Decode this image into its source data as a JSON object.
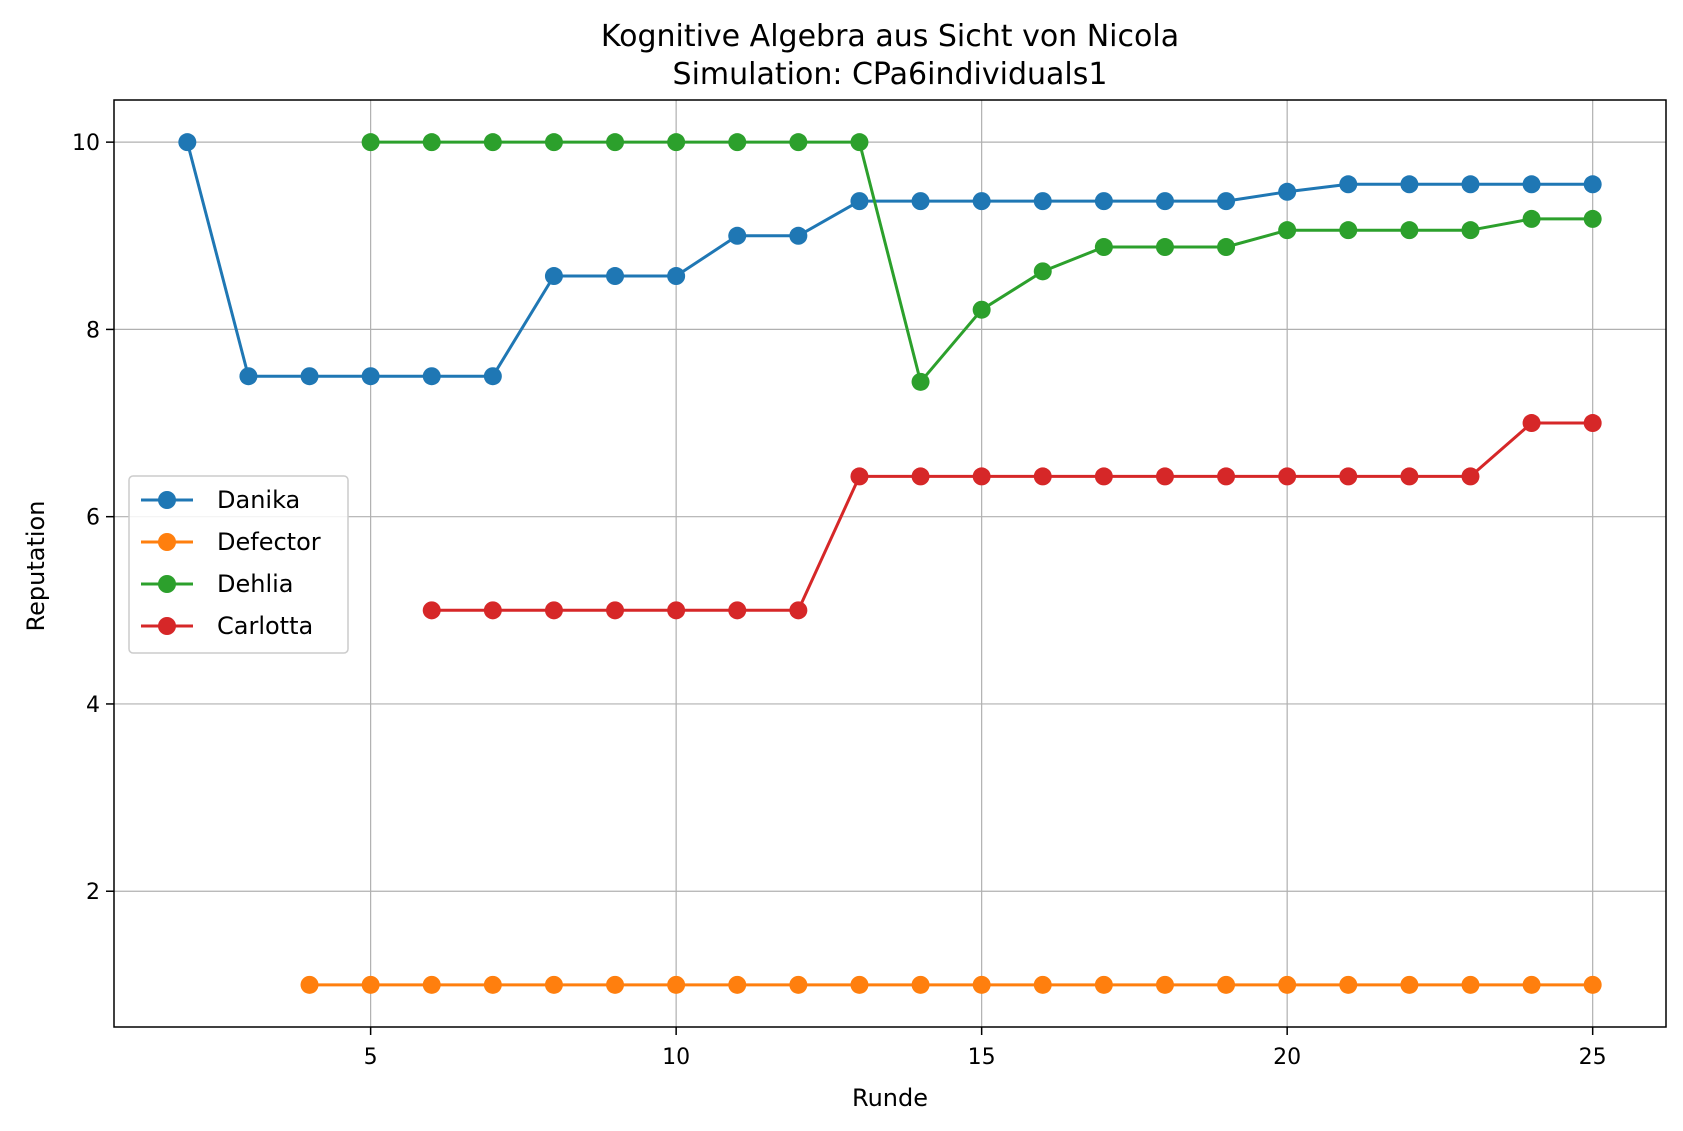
{
  "chart_data": {
    "type": "line",
    "title": "Kognitive Algebra aus Sicht von Nicola",
    "subtitle": "Simulation: CPa6individuals1",
    "xlabel": "Runde",
    "ylabel": "Reputation",
    "xlim": [
      0.8,
      26.2
    ],
    "ylim": [
      0.55,
      10.45
    ],
    "xticks": [
      5,
      10,
      15,
      20,
      25
    ],
    "yticks": [
      2,
      4,
      6,
      8,
      10
    ],
    "grid": true,
    "legend_position": "center-left",
    "series": [
      {
        "name": "Danika",
        "color": "#1f77b4",
        "x": [
          2,
          3,
          4,
          5,
          6,
          7,
          8,
          9,
          10,
          11,
          12,
          13,
          14,
          15,
          16,
          17,
          18,
          19,
          20,
          21,
          22,
          23,
          24,
          25
        ],
        "y": [
          10,
          7.5,
          7.5,
          7.5,
          7.5,
          7.5,
          8.57,
          8.57,
          8.57,
          9.0,
          9.0,
          9.37,
          9.37,
          9.37,
          9.37,
          9.37,
          9.37,
          9.37,
          9.47,
          9.55,
          9.55,
          9.55,
          9.55,
          9.55
        ]
      },
      {
        "name": "Defector",
        "color": "#ff7f0e",
        "x": [
          4,
          5,
          6,
          7,
          8,
          9,
          10,
          11,
          12,
          13,
          14,
          15,
          16,
          17,
          18,
          19,
          20,
          21,
          22,
          23,
          24,
          25
        ],
        "y": [
          1,
          1,
          1,
          1,
          1,
          1,
          1,
          1,
          1,
          1,
          1,
          1,
          1,
          1,
          1,
          1,
          1,
          1,
          1,
          1,
          1,
          1
        ]
      },
      {
        "name": "Dehlia",
        "color": "#2ca02c",
        "x": [
          5,
          6,
          7,
          8,
          9,
          10,
          11,
          12,
          13,
          14,
          15,
          16,
          17,
          18,
          19,
          20,
          21,
          22,
          23,
          24,
          25
        ],
        "y": [
          10,
          10,
          10,
          10,
          10,
          10,
          10,
          10,
          10,
          7.44,
          8.21,
          8.62,
          8.88,
          8.88,
          8.88,
          9.06,
          9.06,
          9.06,
          9.06,
          9.18,
          9.18
        ]
      },
      {
        "name": "Carlotta",
        "color": "#d62728",
        "x": [
          6,
          7,
          8,
          9,
          10,
          11,
          12,
          13,
          14,
          15,
          16,
          17,
          18,
          19,
          20,
          21,
          22,
          23,
          24,
          25
        ],
        "y": [
          5,
          5,
          5,
          5,
          5,
          5,
          5,
          6.43,
          6.43,
          6.43,
          6.43,
          6.43,
          6.43,
          6.43,
          6.43,
          6.43,
          6.43,
          6.43,
          7.0,
          7.0
        ]
      }
    ]
  }
}
